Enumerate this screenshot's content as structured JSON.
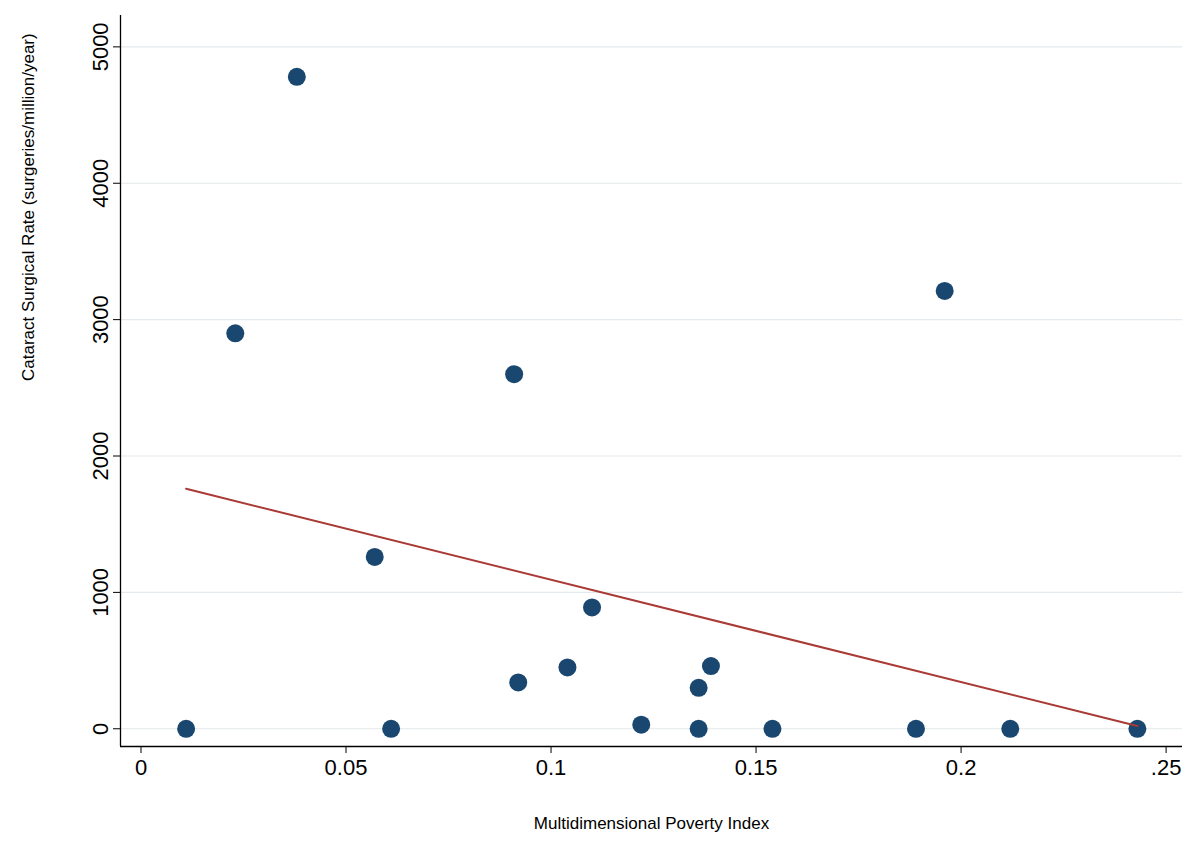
{
  "chart_data": {
    "type": "scatter",
    "x_label": "Multidimensional Poverty Index",
    "y_label": "Cataract Surgical Rate (surgeries/million/year)",
    "xlim": [
      -0.005,
      0.254
    ],
    "ylim": [
      -130,
      5230
    ],
    "xticks": [
      0,
      0.05,
      0.1,
      0.15,
      0.2,
      {
        "value": 0.25,
        "label": ".25"
      }
    ],
    "yticks": [
      0,
      1000,
      2000,
      3000,
      4000,
      5000
    ],
    "grid": true,
    "series": [
      {
        "type": "scatter",
        "marker": "circle",
        "color": "#1a476f",
        "x": [
          0.011,
          0.023,
          0.038,
          0.057,
          0.061,
          0.091,
          0.092,
          0.104,
          0.11,
          0.122,
          0.136,
          0.136,
          0.139,
          0.154,
          0.189,
          0.196,
          0.212,
          0.243
        ],
        "values": [
          0,
          2900,
          4780,
          1260,
          0,
          2600,
          340,
          450,
          890,
          30,
          0,
          300,
          460,
          0,
          0,
          3210,
          0,
          0
        ]
      },
      {
        "type": "line",
        "line_style": "solid",
        "color": "#a93a35",
        "x": [
          0.011,
          0.243
        ],
        "values": [
          1760,
          20
        ]
      }
    ]
  }
}
